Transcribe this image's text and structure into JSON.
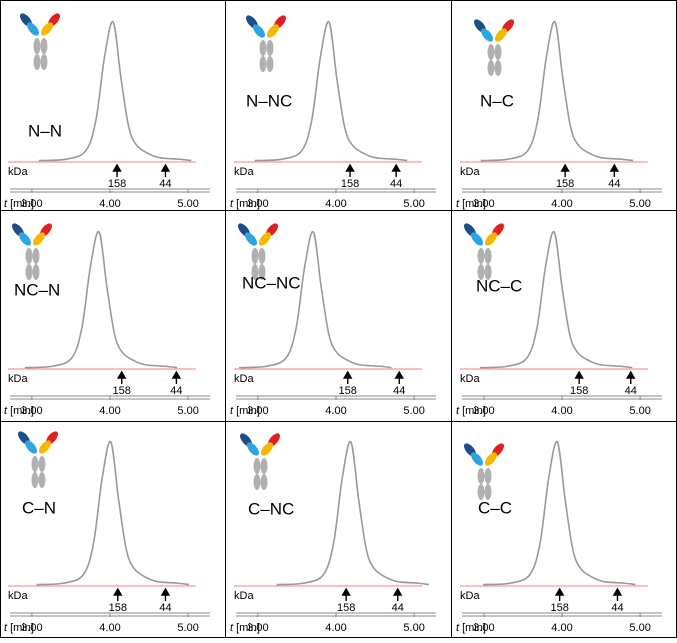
{
  "chart_data": [
    {
      "type": "line",
      "title": "N–N",
      "x": [
        3.09,
        3.44,
        3.69,
        3.82,
        3.93,
        4.04,
        4.14,
        4.24,
        4.34,
        4.49,
        4.64,
        4.89,
        5.04
      ],
      "values": [
        1,
        2,
        8,
        30,
        75,
        100,
        60,
        25,
        12,
        6,
        3,
        2,
        1
      ],
      "color": "#999999",
      "xlim": [
        2.72,
        5.28
      ],
      "ylim": [
        0,
        100
      ],
      "xticks": [
        {
          "value": 3,
          "label": "3.00"
        },
        {
          "value": 4,
          "label": "4.00"
        },
        {
          "value": 5,
          "label": "5.00"
        }
      ],
      "xlabel": {
        "variable": "t",
        "unit": "[min]"
      },
      "marker_unit": "kDa",
      "markers": [
        {
          "label": "158",
          "x": 4.09
        },
        {
          "label": "44",
          "x": 4.71
        }
      ]
    },
    {
      "type": "line",
      "title": "N–NC",
      "x": [
        2.96,
        3.31,
        3.56,
        3.69,
        3.8,
        3.91,
        4.01,
        4.11,
        4.21,
        4.36,
        4.51,
        4.76,
        4.91
      ],
      "values": [
        1,
        2,
        8,
        30,
        75,
        100,
        60,
        25,
        12,
        6,
        3,
        2,
        1
      ],
      "color": "#999999",
      "xlim": [
        2.72,
        5.28
      ],
      "ylim": [
        0,
        100
      ],
      "xticks": [
        {
          "value": 3,
          "label": "3.00"
        },
        {
          "value": 4,
          "label": "4.00"
        },
        {
          "value": 5,
          "label": "5.00"
        }
      ],
      "xlabel": {
        "variable": "t",
        "unit": "[min]"
      },
      "marker_unit": "kDa",
      "markers": [
        {
          "label": "158",
          "x": 4.18
        },
        {
          "label": "44",
          "x": 4.77
        }
      ]
    },
    {
      "type": "line",
      "title": "N–C",
      "x": [
        2.96,
        3.31,
        3.56,
        3.69,
        3.8,
        3.91,
        4.01,
        4.11,
        4.21,
        4.36,
        4.51,
        4.76,
        4.91
      ],
      "values": [
        1,
        2,
        8,
        30,
        75,
        100,
        60,
        25,
        12,
        6,
        3,
        2,
        1
      ],
      "color": "#999999",
      "xlim": [
        2.72,
        5.28
      ],
      "ylim": [
        0,
        100
      ],
      "xticks": [
        {
          "value": 3,
          "label": "3.00"
        },
        {
          "value": 4,
          "label": "4.00"
        },
        {
          "value": 5,
          "label": "5.00"
        }
      ],
      "xlabel": {
        "variable": "t",
        "unit": "[min]"
      },
      "marker_unit": "kDa",
      "markers": [
        {
          "label": "158",
          "x": 4.04
        },
        {
          "label": "44",
          "x": 4.67
        }
      ]
    },
    {
      "type": "line",
      "title": "NC–N",
      "x": [
        2.91,
        3.26,
        3.51,
        3.64,
        3.75,
        3.86,
        3.96,
        4.06,
        4.16,
        4.31,
        4.46,
        4.71,
        4.86
      ],
      "values": [
        1,
        2,
        8,
        30,
        75,
        100,
        60,
        25,
        12,
        6,
        3,
        2,
        1
      ],
      "color": "#999999",
      "xlim": [
        2.72,
        5.28
      ],
      "ylim": [
        0,
        100
      ],
      "xticks": [
        {
          "value": 3,
          "label": "3.00"
        },
        {
          "value": 4,
          "label": "4.00"
        },
        {
          "value": 5,
          "label": "5.00"
        }
      ],
      "xlabel": {
        "variable": "t",
        "unit": "[min]"
      },
      "marker_unit": "kDa",
      "markers": [
        {
          "label": "158",
          "x": 4.15
        },
        {
          "label": "44",
          "x": 4.85
        }
      ]
    },
    {
      "type": "line",
      "title": "NC–NC",
      "x": [
        2.76,
        3.11,
        3.36,
        3.49,
        3.6,
        3.71,
        3.81,
        3.91,
        4.01,
        4.16,
        4.31,
        4.56,
        4.71
      ],
      "values": [
        1,
        2,
        8,
        30,
        75,
        100,
        60,
        25,
        12,
        6,
        3,
        2,
        1
      ],
      "color": "#999999",
      "xlim": [
        2.72,
        5.28
      ],
      "ylim": [
        0,
        100
      ],
      "xticks": [
        {
          "value": 3,
          "label": "3.00"
        },
        {
          "value": 4,
          "label": "4.00"
        },
        {
          "value": 5,
          "label": "5.00"
        }
      ],
      "xlabel": {
        "variable": "t",
        "unit": "[min]"
      },
      "marker_unit": "kDa",
      "markers": [
        {
          "label": "158",
          "x": 4.15
        },
        {
          "label": "44",
          "x": 4.81
        }
      ]
    },
    {
      "type": "line",
      "title": "NC–C",
      "x": [
        2.95,
        3.3,
        3.55,
        3.68,
        3.79,
        3.9,
        4.0,
        4.1,
        4.2,
        4.35,
        4.5,
        4.75,
        4.9
      ],
      "values": [
        1,
        2,
        8,
        30,
        75,
        100,
        60,
        25,
        12,
        6,
        3,
        2,
        1
      ],
      "color": "#999999",
      "xlim": [
        2.72,
        5.28
      ],
      "ylim": [
        0,
        100
      ],
      "xticks": [
        {
          "value": 3,
          "label": "3.00"
        },
        {
          "value": 4,
          "label": "4.00"
        },
        {
          "value": 5,
          "label": "5.00"
        }
      ],
      "xlabel": {
        "variable": "t",
        "unit": "[min]"
      },
      "marker_unit": "kDa",
      "markers": [
        {
          "label": "158",
          "x": 4.22
        },
        {
          "label": "44",
          "x": 4.88
        }
      ]
    },
    {
      "type": "line",
      "title": "C–N",
      "x": [
        3.06,
        3.41,
        3.66,
        3.79,
        3.9,
        4.01,
        4.11,
        4.21,
        4.31,
        4.46,
        4.61,
        4.86,
        5.01
      ],
      "values": [
        1,
        2,
        8,
        30,
        75,
        100,
        60,
        25,
        12,
        6,
        3,
        2,
        1
      ],
      "color": "#999999",
      "xlim": [
        2.72,
        5.28
      ],
      "ylim": [
        0,
        100
      ],
      "xticks": [
        {
          "value": 3,
          "label": "3.00"
        },
        {
          "value": 4,
          "label": "4.00"
        },
        {
          "value": 5,
          "label": "5.00"
        }
      ],
      "xlabel": {
        "variable": "t",
        "unit": "[min]"
      },
      "marker_unit": "kDa",
      "markers": [
        {
          "label": "158",
          "x": 4.1
        },
        {
          "label": "44",
          "x": 4.71
        }
      ]
    },
    {
      "type": "line",
      "title": "C–NC",
      "x": [
        3.24,
        3.59,
        3.84,
        3.97,
        4.08,
        4.19,
        4.29,
        4.39,
        4.49,
        4.64,
        4.79,
        5.04,
        5.19
      ],
      "values": [
        1,
        2,
        8,
        30,
        75,
        100,
        60,
        25,
        12,
        6,
        3,
        2,
        1
      ],
      "color": "#999999",
      "xlim": [
        2.72,
        5.28
      ],
      "ylim": [
        0,
        100
      ],
      "xticks": [
        {
          "value": 3,
          "label": "3.00"
        },
        {
          "value": 4,
          "label": "4.00"
        },
        {
          "value": 5,
          "label": "5.00"
        }
      ],
      "xlabel": {
        "variable": "t",
        "unit": "[min]"
      },
      "marker_unit": "kDa",
      "markers": [
        {
          "label": "158",
          "x": 4.13
        },
        {
          "label": "44",
          "x": 4.79
        }
      ]
    },
    {
      "type": "line",
      "title": "C–C",
      "x": [
        2.99,
        3.34,
        3.59,
        3.72,
        3.83,
        3.94,
        4.04,
        4.14,
        4.24,
        4.39,
        4.54,
        4.79,
        4.94
      ],
      "values": [
        1,
        2,
        8,
        30,
        75,
        100,
        60,
        25,
        12,
        6,
        3,
        2,
        1
      ],
      "color": "#999999",
      "xlim": [
        2.72,
        5.28
      ],
      "ylim": [
        0,
        100
      ],
      "xticks": [
        {
          "value": 3,
          "label": "3.00"
        },
        {
          "value": 4,
          "label": "4.00"
        },
        {
          "value": 5,
          "label": "5.00"
        }
      ],
      "xlabel": {
        "variable": "t",
        "unit": "[min]"
      },
      "marker_unit": "kDa",
      "markers": [
        {
          "label": "158",
          "x": 3.97
        },
        {
          "label": "44",
          "x": 4.71
        }
      ]
    }
  ]
}
